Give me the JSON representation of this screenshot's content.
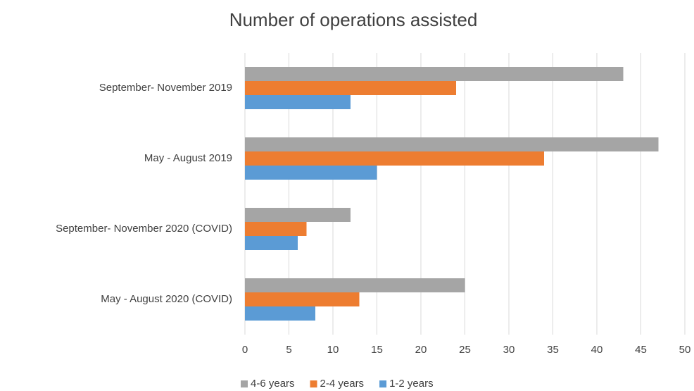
{
  "chart_data": {
    "type": "bar",
    "orientation": "horizontal",
    "title": "Number of operations assisted",
    "categories": [
      "September- November 2019",
      "May - August 2019",
      "September- November 2020 (COVID)",
      "May - August 2020 (COVID)"
    ],
    "series": [
      {
        "name": "4-6 years",
        "color": "#a5a5a5",
        "values": [
          43,
          47,
          12,
          25
        ]
      },
      {
        "name": "2-4 years",
        "color": "#ed7d31",
        "values": [
          24,
          34,
          7,
          13
        ]
      },
      {
        "name": "1-2 years",
        "color": "#5b9bd5",
        "values": [
          12,
          15,
          6,
          8
        ]
      }
    ],
    "xlim": [
      0,
      50
    ],
    "xticks": [
      0,
      5,
      10,
      15,
      20,
      25,
      30,
      35,
      40,
      45,
      50
    ],
    "grid": true,
    "legend": "bottom"
  }
}
